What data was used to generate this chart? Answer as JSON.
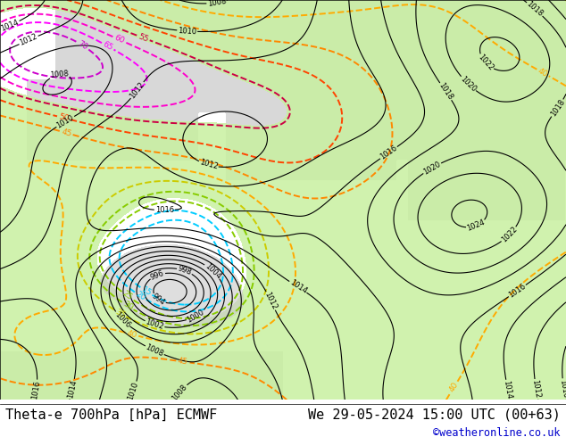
{
  "title_left": "Theta-e 700hPa [hPa] ECMWF",
  "title_right": "We 29-05-2024 15:00 UTC (00+63)",
  "copyright": "©weatheronline.co.uk",
  "copyright_color": "#0000cc",
  "title_font_size": 11,
  "fig_width": 6.34,
  "fig_height": 4.9,
  "dpi": 100,
  "theta_line_colors": {
    "15": "#00ccff",
    "20": "#00ccff",
    "25": "#88cc00",
    "30": "#88cc00",
    "35": "#cccc00",
    "40": "#ffaa00",
    "45": "#ff8800",
    "50": "#ff4400",
    "55": "#cc0044",
    "60": "#ff00cc",
    "65": "#ff00ff",
    "70": "#cc00cc"
  },
  "warm_sector_color": "#c8f0a0",
  "cold_sector_color": "#e0e0e0",
  "bg_color": "#f0f0f0",
  "land_color": "#d8d8d8",
  "sea_color": "#ffffff"
}
